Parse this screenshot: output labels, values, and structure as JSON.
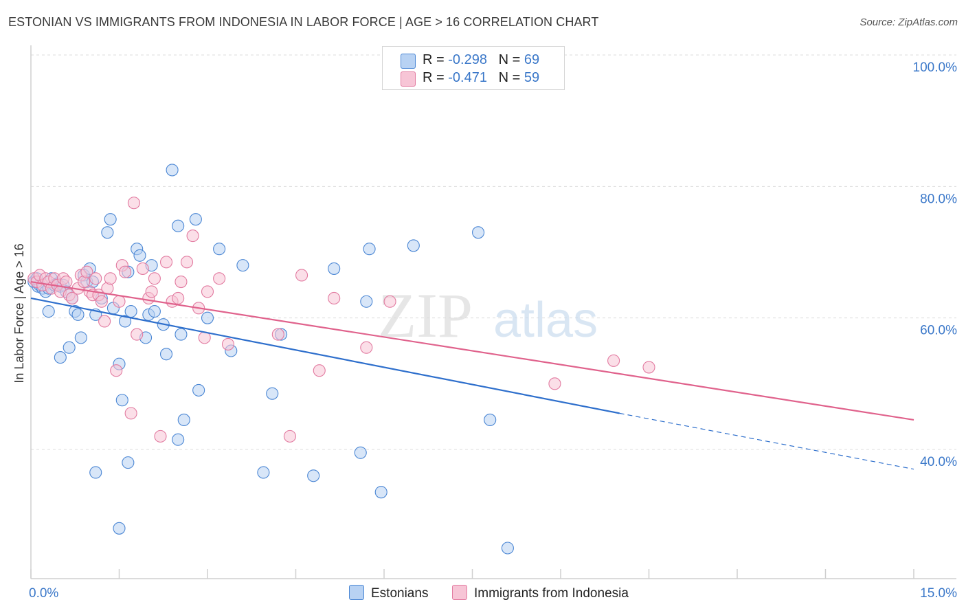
{
  "title": "ESTONIAN VS IMMIGRANTS FROM INDONESIA IN LABOR FORCE | AGE > 16 CORRELATION CHART",
  "source": "Source: ZipAtlas.com",
  "watermark": {
    "zip": "ZIP",
    "atlas": "atlas"
  },
  "colors": {
    "blue": "#4a86d4",
    "blue_fill": "#b8d2f3",
    "blue_line": "#2e6fcc",
    "pink": "#e27aa0",
    "pink_fill": "#f7c5d6",
    "pink_line": "#e0628c",
    "tick_label": "#3b78c9",
    "grid": "#dcdcdc"
  },
  "legend": {
    "rows": [
      {
        "r_label": "R = ",
        "r_value": "-0.298",
        "n_label": "N = ",
        "n_value": "69"
      },
      {
        "r_label": "R = ",
        "r_value": "-0.471",
        "n_label": "N = ",
        "n_value": "59"
      }
    ]
  },
  "bottom_legend": {
    "estonians": "Estonians",
    "indonesia": "Immigrants from Indonesia"
  },
  "chart_data": {
    "type": "scatter",
    "title": "ESTONIAN VS IMMIGRANTS FROM INDONESIA IN LABOR FORCE | AGE > 16 CORRELATION CHART",
    "xlabel": "",
    "ylabel": "In Labor Force | Age > 16",
    "xlim": [
      0,
      15
    ],
    "ylim": [
      20,
      102
    ],
    "x_tick_labels": [
      "0.0%",
      "15.0%"
    ],
    "y_ticks": [
      40,
      60,
      80,
      100
    ],
    "y_tick_labels": [
      "40.0%",
      "60.0%",
      "80.0%",
      "100.0%"
    ],
    "grid": true,
    "series": [
      {
        "name": "Estonians",
        "r": -0.298,
        "n": 69,
        "trend": {
          "x0": 0,
          "y0": 63.0,
          "x1": 10.0,
          "y1": 45.5,
          "dash_x1": 15,
          "dash_y1": 37.0
        },
        "points": [
          [
            0.05,
            65.5
          ],
          [
            0.1,
            66.0
          ],
          [
            0.12,
            64.8
          ],
          [
            0.15,
            65.0
          ],
          [
            0.2,
            64.5
          ],
          [
            0.25,
            64.0
          ],
          [
            0.3,
            64.5
          ],
          [
            0.35,
            66.0
          ],
          [
            0.4,
            65.0
          ],
          [
            0.45,
            65.2
          ],
          [
            0.5,
            64.8
          ],
          [
            0.55,
            65.0
          ],
          [
            0.6,
            64.0
          ],
          [
            0.7,
            63.0
          ],
          [
            0.75,
            61.0
          ],
          [
            0.8,
            60.5
          ],
          [
            0.85,
            57.0
          ],
          [
            0.9,
            66.5
          ],
          [
            0.95,
            65.5
          ],
          [
            1.0,
            67.5
          ],
          [
            1.05,
            65.5
          ],
          [
            1.1,
            60.5
          ],
          [
            1.2,
            63.0
          ],
          [
            1.3,
            73.0
          ],
          [
            1.35,
            75.0
          ],
          [
            1.4,
            61.5
          ],
          [
            1.5,
            53.0
          ],
          [
            1.55,
            47.5
          ],
          [
            1.6,
            59.5
          ],
          [
            1.65,
            67.0
          ],
          [
            1.7,
            61.0
          ],
          [
            1.8,
            70.5
          ],
          [
            1.85,
            69.5
          ],
          [
            1.95,
            57.0
          ],
          [
            2.0,
            60.5
          ],
          [
            2.05,
            68.0
          ],
          [
            2.1,
            61.0
          ],
          [
            2.25,
            59.0
          ],
          [
            2.3,
            54.5
          ],
          [
            2.4,
            82.5
          ],
          [
            2.5,
            74.0
          ],
          [
            2.55,
            57.5
          ],
          [
            2.6,
            44.5
          ],
          [
            2.8,
            75.0
          ],
          [
            2.85,
            49.0
          ],
          [
            3.0,
            60.0
          ],
          [
            3.2,
            70.5
          ],
          [
            3.4,
            55.0
          ],
          [
            3.6,
            68.0
          ],
          [
            3.95,
            36.5
          ],
          [
            4.1,
            48.5
          ],
          [
            4.25,
            57.5
          ],
          [
            4.8,
            36.0
          ],
          [
            5.15,
            67.5
          ],
          [
            5.6,
            39.5
          ],
          [
            5.7,
            62.5
          ],
          [
            5.75,
            70.5
          ],
          [
            5.95,
            33.5
          ],
          [
            6.5,
            71.0
          ],
          [
            7.6,
            73.0
          ],
          [
            7.8,
            44.5
          ],
          [
            8.1,
            25.0
          ],
          [
            1.1,
            36.5
          ],
          [
            1.5,
            28.0
          ],
          [
            1.65,
            38.0
          ],
          [
            2.5,
            41.5
          ],
          [
            0.5,
            54.0
          ],
          [
            0.65,
            55.5
          ],
          [
            0.3,
            61.0
          ]
        ]
      },
      {
        "name": "Immigrants from Indonesia",
        "r": -0.471,
        "n": 59,
        "trend": {
          "x0": 0,
          "y0": 65.5,
          "x1": 15,
          "y1": 44.5
        },
        "points": [
          [
            0.05,
            66.0
          ],
          [
            0.1,
            65.5
          ],
          [
            0.15,
            66.5
          ],
          [
            0.2,
            65.0
          ],
          [
            0.25,
            66.0
          ],
          [
            0.3,
            65.5
          ],
          [
            0.35,
            64.5
          ],
          [
            0.4,
            66.0
          ],
          [
            0.45,
            65.0
          ],
          [
            0.5,
            64.0
          ],
          [
            0.55,
            66.0
          ],
          [
            0.6,
            65.5
          ],
          [
            0.65,
            63.5
          ],
          [
            0.7,
            63.0
          ],
          [
            0.8,
            64.5
          ],
          [
            0.85,
            66.5
          ],
          [
            0.9,
            65.5
          ],
          [
            0.95,
            67.0
          ],
          [
            1.0,
            64.0
          ],
          [
            1.05,
            63.5
          ],
          [
            1.1,
            66.0
          ],
          [
            1.15,
            63.5
          ],
          [
            1.2,
            62.5
          ],
          [
            1.3,
            64.5
          ],
          [
            1.35,
            66.0
          ],
          [
            1.45,
            52.0
          ],
          [
            1.5,
            62.5
          ],
          [
            1.55,
            68.0
          ],
          [
            1.6,
            67.0
          ],
          [
            1.7,
            45.5
          ],
          [
            1.75,
            77.5
          ],
          [
            1.8,
            57.5
          ],
          [
            1.9,
            67.5
          ],
          [
            2.0,
            63.0
          ],
          [
            2.05,
            64.0
          ],
          [
            2.1,
            66.0
          ],
          [
            2.2,
            42.0
          ],
          [
            2.3,
            68.5
          ],
          [
            2.4,
            62.5
          ],
          [
            2.5,
            63.0
          ],
          [
            2.55,
            65.5
          ],
          [
            2.65,
            68.5
          ],
          [
            2.75,
            72.5
          ],
          [
            2.85,
            61.5
          ],
          [
            2.95,
            57.0
          ],
          [
            3.0,
            64.0
          ],
          [
            3.2,
            66.0
          ],
          [
            3.35,
            56.0
          ],
          [
            4.2,
            57.5
          ],
          [
            4.4,
            42.0
          ],
          [
            4.6,
            66.5
          ],
          [
            4.9,
            52.0
          ],
          [
            5.15,
            63.0
          ],
          [
            5.7,
            55.5
          ],
          [
            6.1,
            62.5
          ],
          [
            8.9,
            50.0
          ],
          [
            9.9,
            53.5
          ],
          [
            10.5,
            52.5
          ],
          [
            1.25,
            59.5
          ]
        ]
      }
    ]
  }
}
